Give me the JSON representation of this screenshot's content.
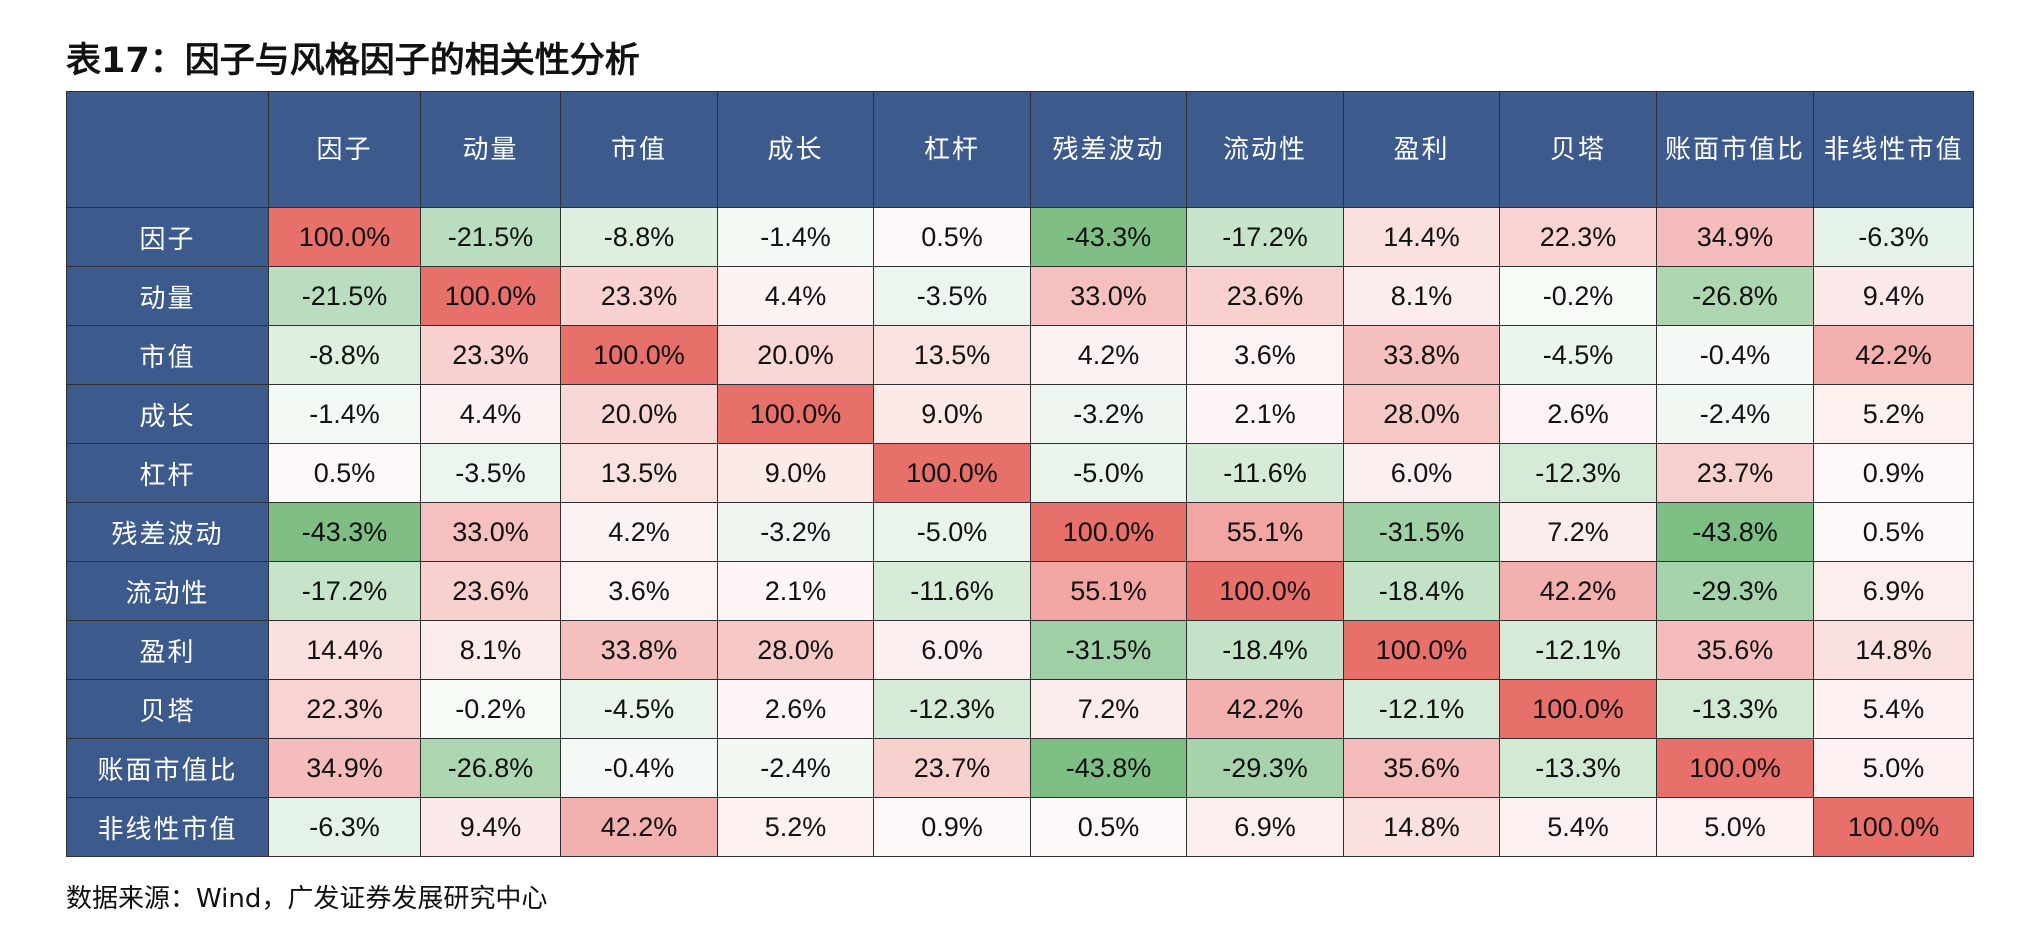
{
  "title": "表17：因子与风格因子的相关性分析",
  "source": "数据来源：Wind，广发证券发展研究中心",
  "colors": {
    "header_bg": "#3d5a8c",
    "header_text": "#ffffff",
    "positive_max": "#e8706b",
    "negative_max": "#72b97a",
    "neutral": "#ffffff"
  },
  "table": {
    "columns": [
      "",
      "因子",
      "动量",
      "市值",
      "成长",
      "杠杆",
      "残差波动",
      "流动性",
      "盈利",
      "贝塔",
      "账面市值比",
      "非线性市值"
    ],
    "rows": [
      {
        "label": "因子",
        "cells": [
          "100.0%",
          "-21.5%",
          "-8.8%",
          "-1.4%",
          "0.5%",
          "-43.3%",
          "-17.2%",
          "14.4%",
          "22.3%",
          "34.9%",
          "-6.3%"
        ]
      },
      {
        "label": "动量",
        "cells": [
          "-21.5%",
          "100.0%",
          "23.3%",
          "4.4%",
          "-3.5%",
          "33.0%",
          "23.6%",
          "8.1%",
          "-0.2%",
          "-26.8%",
          "9.4%"
        ]
      },
      {
        "label": "市值",
        "cells": [
          "-8.8%",
          "23.3%",
          "100.0%",
          "20.0%",
          "13.5%",
          "4.2%",
          "3.6%",
          "33.8%",
          "-4.5%",
          "-0.4%",
          "42.2%"
        ]
      },
      {
        "label": "成长",
        "cells": [
          "-1.4%",
          "4.4%",
          "20.0%",
          "100.0%",
          "9.0%",
          "-3.2%",
          "2.1%",
          "28.0%",
          "2.6%",
          "-2.4%",
          "5.2%"
        ]
      },
      {
        "label": "杠杆",
        "cells": [
          "0.5%",
          "-3.5%",
          "13.5%",
          "9.0%",
          "100.0%",
          "-5.0%",
          "-11.6%",
          "6.0%",
          "-12.3%",
          "23.7%",
          "0.9%"
        ]
      },
      {
        "label": "残差波动",
        "cells": [
          "-43.3%",
          "33.0%",
          "4.2%",
          "-3.2%",
          "-5.0%",
          "100.0%",
          "55.1%",
          "-31.5%",
          "7.2%",
          "-43.8%",
          "0.5%"
        ]
      },
      {
        "label": "流动性",
        "cells": [
          "-17.2%",
          "23.6%",
          "3.6%",
          "2.1%",
          "-11.6%",
          "55.1%",
          "100.0%",
          "-18.4%",
          "42.2%",
          "-29.3%",
          "6.9%"
        ]
      },
      {
        "label": "盈利",
        "cells": [
          "14.4%",
          "8.1%",
          "33.8%",
          "28.0%",
          "6.0%",
          "-31.5%",
          "-18.4%",
          "100.0%",
          "-12.1%",
          "35.6%",
          "14.8%"
        ]
      },
      {
        "label": "贝塔",
        "cells": [
          "22.3%",
          "-0.2%",
          "-4.5%",
          "2.6%",
          "-12.3%",
          "7.2%",
          "42.2%",
          "-12.1%",
          "100.0%",
          "-13.3%",
          "5.4%"
        ]
      },
      {
        "label": "账面市值比",
        "cells": [
          "34.9%",
          "-26.8%",
          "-0.4%",
          "-2.4%",
          "23.7%",
          "-43.8%",
          "-29.3%",
          "35.6%",
          "-13.3%",
          "100.0%",
          "5.0%"
        ]
      },
      {
        "label": "非线性市值",
        "cells": [
          "-6.3%",
          "9.4%",
          "42.2%",
          "5.2%",
          "0.9%",
          "0.5%",
          "6.9%",
          "14.8%",
          "5.4%",
          "5.0%",
          "100.0%"
        ]
      }
    ]
  }
}
